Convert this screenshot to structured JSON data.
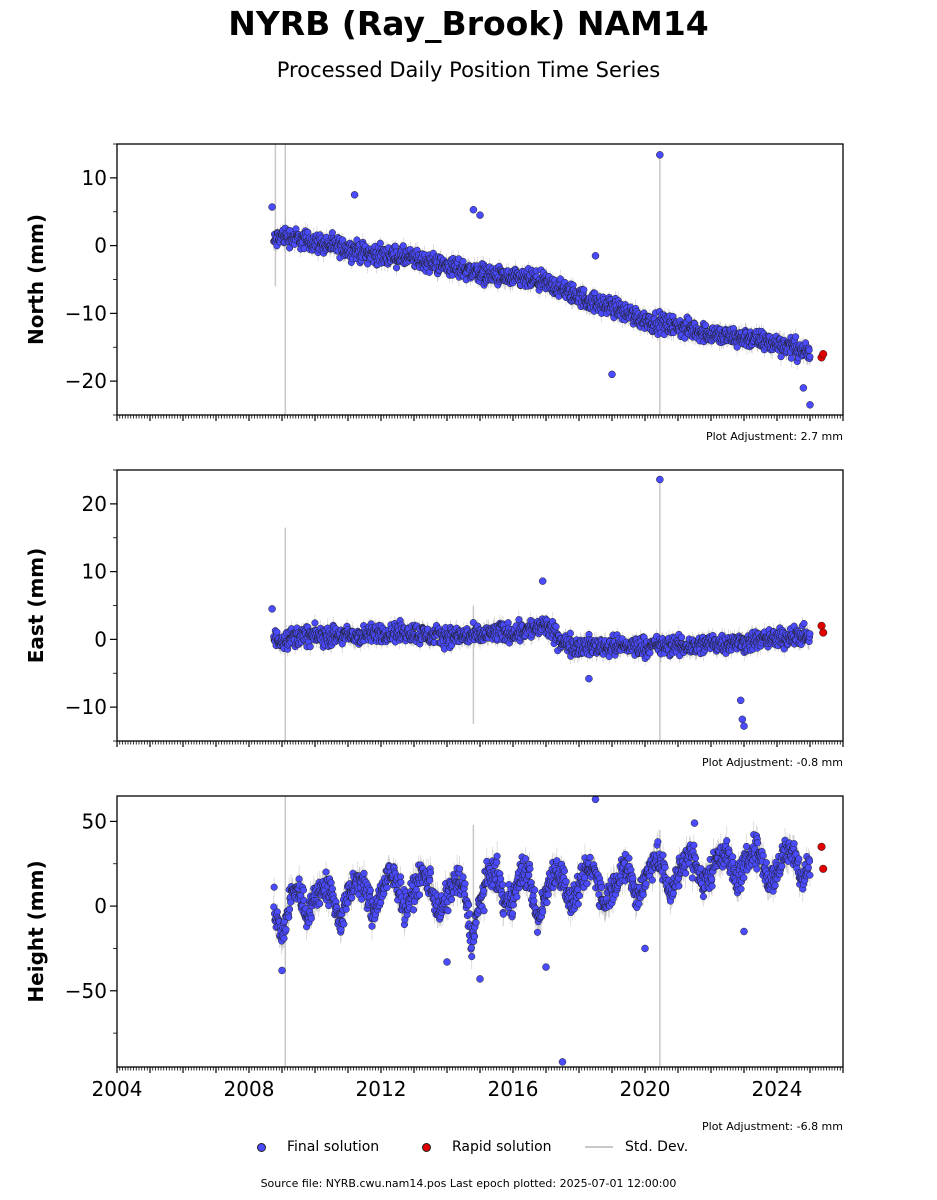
{
  "title": "NYRB (Ray_Brook) NAM14",
  "subtitle": "Processed Daily Position Time Series",
  "legend": {
    "final": "Final solution",
    "rapid": "Rapid solution",
    "std": "Std. Dev."
  },
  "source": "Source file: NYRB.cwu.nam14.pos  Last epoch plotted: 2025-07-01 12:00:00",
  "colors": {
    "final": "#4a4aff",
    "rapid": "#e00000",
    "std": "#c8c8c8",
    "edge": "#202020"
  },
  "chart_data": [
    {
      "type": "scatter",
      "ylabel": "North (mm)",
      "xlim": [
        2004,
        2026
      ],
      "ylim": [
        -25,
        15
      ],
      "yticks": [
        -20,
        -10,
        0,
        10
      ],
      "ytick_labels": [
        "−20",
        "−10",
        "0",
        "10"
      ],
      "adjustment": "Plot Adjustment: 2.7 mm",
      "final_solution": {
        "x": [
          2008.75,
          2009.0,
          2009.5,
          2010.0,
          2010.5,
          2011.0,
          2011.5,
          2012.0,
          2012.5,
          2013.0,
          2013.5,
          2014.0,
          2014.5,
          2015.0,
          2015.5,
          2016.0,
          2016.5,
          2017.0,
          2017.5,
          2018.0,
          2018.5,
          2019.0,
          2019.5,
          2020.0,
          2020.5,
          2021.0,
          2021.5,
          2022.0,
          2022.5,
          2023.0,
          2023.5,
          2024.0,
          2024.5,
          2025.0
        ],
        "y": [
          0.5,
          1.5,
          1.0,
          0.5,
          0,
          -0.5,
          -1.0,
          -1.5,
          -1.5,
          -2.0,
          -2.5,
          -3.0,
          -3.5,
          -4.0,
          -4.5,
          -5.0,
          -5.0,
          -5.5,
          -6.5,
          -7.5,
          -8.5,
          -9.0,
          -10.0,
          -11.0,
          -11.5,
          -12.0,
          -12.5,
          -13.0,
          -13.5,
          -13.5,
          -14.0,
          -14.5,
          -15.0,
          -16.0
        ]
      },
      "rapid_solution": {
        "x": [
          2025.35,
          2025.4
        ],
        "y": [
          -16.5,
          -16.0
        ]
      },
      "outliers": {
        "x": [
          2008.7,
          2011.2,
          2014.8,
          2015.0,
          2018.5,
          2019.0,
          2020.45,
          2024.8,
          2025.0
        ],
        "y": [
          5.7,
          7.5,
          5.3,
          4.5,
          -1.5,
          -19.0,
          13.4,
          -21.0,
          -23.5
        ]
      },
      "std_spikes": {
        "x": [
          2008.8,
          2009.1,
          2020.45
        ],
        "y_top": [
          15,
          15,
          13.4
        ],
        "y_bottom": [
          -6,
          -25,
          -25
        ]
      }
    },
    {
      "type": "scatter",
      "ylabel": "East (mm)",
      "xlim": [
        2004,
        2026
      ],
      "ylim": [
        -15,
        25
      ],
      "yticks": [
        -10,
        0,
        10,
        20
      ],
      "ytick_labels": [
        "−10",
        "0",
        "10",
        "20"
      ],
      "adjustment": "Plot Adjustment: -0.8 mm",
      "final_solution": {
        "x": [
          2008.75,
          2009.0,
          2009.5,
          2010.0,
          2010.5,
          2011.0,
          2011.5,
          2012.0,
          2012.5,
          2013.0,
          2013.5,
          2014.0,
          2014.5,
          2015.0,
          2015.5,
          2016.0,
          2016.5,
          2017.0,
          2017.5,
          2018.0,
          2018.5,
          2019.0,
          2019.5,
          2020.0,
          2020.5,
          2021.0,
          2021.5,
          2022.0,
          2022.5,
          2023.0,
          2023.5,
          2024.0,
          2024.5,
          2025.0
        ],
        "y": [
          0,
          0,
          0.5,
          0.5,
          0.5,
          0.5,
          0.5,
          1.0,
          1.0,
          1.0,
          0.5,
          0.5,
          0.5,
          0.5,
          1.0,
          1.0,
          1.5,
          2.0,
          -0.5,
          -1.0,
          -1.0,
          -1.0,
          -1.0,
          -1.0,
          -1.0,
          -1.0,
          -1.0,
          -0.5,
          -0.5,
          -0.5,
          0,
          0,
          0.5,
          0.5
        ]
      },
      "rapid_solution": {
        "x": [
          2025.35,
          2025.4
        ],
        "y": [
          2.0,
          1.0
        ]
      },
      "outliers": {
        "x": [
          2008.7,
          2016.9,
          2018.3,
          2020.45,
          2022.9,
          2022.95,
          2023.0
        ],
        "y": [
          4.5,
          8.6,
          -5.8,
          23.6,
          -9.0,
          -11.8,
          -12.8
        ]
      },
      "std_spikes": {
        "x": [
          2009.1,
          2014.8,
          2020.45
        ],
        "y_top": [
          16.5,
          5,
          23.6
        ],
        "y_bottom": [
          -15,
          -12.5,
          -15
        ]
      }
    },
    {
      "type": "scatter",
      "ylabel": "Height (mm)",
      "xlim": [
        2004,
        2026
      ],
      "ylim": [
        -95,
        65
      ],
      "yticks": [
        -50,
        0,
        50
      ],
      "ytick_labels": [
        "−50",
        "0",
        "50"
      ],
      "xticks": [
        2004,
        2008,
        2012,
        2016,
        2020,
        2024
      ],
      "adjustment": "Plot Adjustment: -6.8 mm",
      "final_solution": {
        "x": [
          2008.75,
          2009.0,
          2009.25,
          2009.5,
          2009.75,
          2010.0,
          2010.25,
          2010.5,
          2010.75,
          2011.0,
          2011.25,
          2011.5,
          2011.75,
          2012.0,
          2012.25,
          2012.5,
          2012.75,
          2013.0,
          2013.25,
          2013.5,
          2013.75,
          2014.0,
          2014.25,
          2014.5,
          2014.75,
          2015.0,
          2015.25,
          2015.5,
          2015.75,
          2016.0,
          2016.25,
          2016.5,
          2016.75,
          2017.0,
          2017.25,
          2017.5,
          2017.75,
          2018.0,
          2018.25,
          2018.5,
          2018.75,
          2019.0,
          2019.25,
          2019.5,
          2019.75,
          2020.0,
          2020.25,
          2020.5,
          2020.75,
          2021.0,
          2021.25,
          2021.5,
          2021.75,
          2022.0,
          2022.25,
          2022.5,
          2022.75,
          2023.0,
          2023.25,
          2023.5,
          2023.75,
          2024.0,
          2024.25,
          2024.5,
          2024.75,
          2025.0
        ],
        "y": [
          0,
          -20,
          5,
          10,
          -5,
          5,
          12,
          8,
          -10,
          5,
          15,
          12,
          -5,
          8,
          18,
          14,
          -2,
          10,
          18,
          15,
          -5,
          5,
          15,
          12,
          -20,
          2,
          18,
          20,
          0,
          5,
          20,
          18,
          -10,
          8,
          22,
          18,
          0,
          10,
          22,
          20,
          2,
          10,
          20,
          22,
          5,
          15,
          28,
          25,
          8,
          18,
          30,
          28,
          12,
          20,
          32,
          30,
          15,
          22,
          34,
          30,
          14,
          20,
          32,
          35,
          15,
          25
        ]
      },
      "rapid_solution": {
        "x": [
          2025.35,
          2025.4
        ],
        "y": [
          35,
          22
        ]
      },
      "outliers": {
        "x": [
          2009.0,
          2014.0,
          2015.0,
          2017.0,
          2017.5,
          2018.5,
          2020.0,
          2021.5,
          2023.0
        ],
        "y": [
          -38,
          -33,
          -43,
          -36,
          -92,
          63,
          -25,
          49,
          -15
        ]
      },
      "std_spikes": {
        "x": [
          2009.1,
          2014.8,
          2020.45
        ],
        "y_top": [
          65,
          48,
          45
        ],
        "y_bottom": [
          -95,
          -30,
          -95
        ]
      }
    }
  ]
}
